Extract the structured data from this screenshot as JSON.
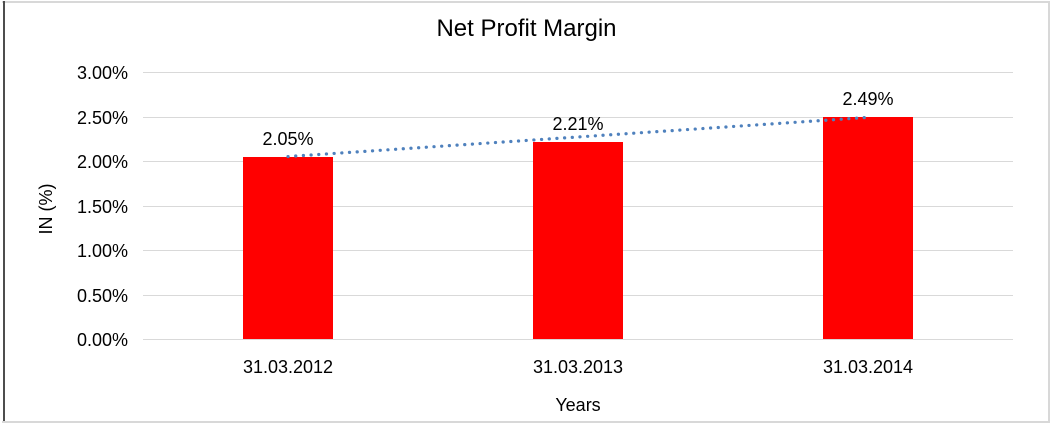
{
  "chart_data": {
    "type": "bar",
    "title": "Net Profit Margin",
    "categories": [
      "31.03.2012",
      "31.03.2013",
      "31.03.2014"
    ],
    "values": [
      2.05,
      2.21,
      2.49
    ],
    "data_labels": [
      "2.05%",
      "2.21%",
      "2.49%"
    ],
    "xlabel": "Years",
    "ylabel": "IN (%)",
    "ylim": [
      0,
      3
    ],
    "ytick_labels": [
      "0.00%",
      "0.50%",
      "1.00%",
      "1.50%",
      "2.00%",
      "2.50%",
      "3.00%"
    ],
    "grid": true,
    "legend_position": "none",
    "trendline": {
      "type": "linear",
      "style": "dotted",
      "from_value": 2.05,
      "to_value": 2.49
    },
    "colors": {
      "bar": "#ff0000",
      "trendline": "#4f81bd",
      "gridline": "#d9d9d9",
      "text": "#000000",
      "frame_border": "#d8d8d8",
      "frame_left_edge": "#4d4d4d",
      "background": "#ffffff"
    }
  }
}
